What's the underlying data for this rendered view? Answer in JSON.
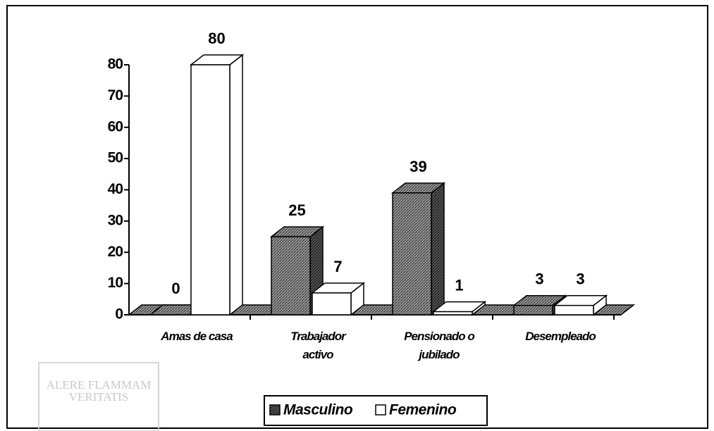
{
  "chart_data": {
    "type": "bar3d",
    "categories": [
      "Amas de casa",
      "Trabajador activo",
      "Pensionado o jubilado",
      "Desempleado"
    ],
    "series": [
      {
        "name": "Masculino",
        "color": "#8a8a8a",
        "values": [
          0,
          25,
          39,
          3
        ]
      },
      {
        "name": "Femenino",
        "color": "#ffffff",
        "values": [
          80,
          7,
          1,
          3
        ]
      }
    ],
    "ylim": [
      0,
      80
    ],
    "yticks": [
      0,
      10,
      20,
      30,
      40,
      50,
      60,
      70,
      80
    ],
    "legend": "bottom",
    "watermark": [
      "ALERE FLAMMAM",
      "VERITATIS"
    ]
  }
}
